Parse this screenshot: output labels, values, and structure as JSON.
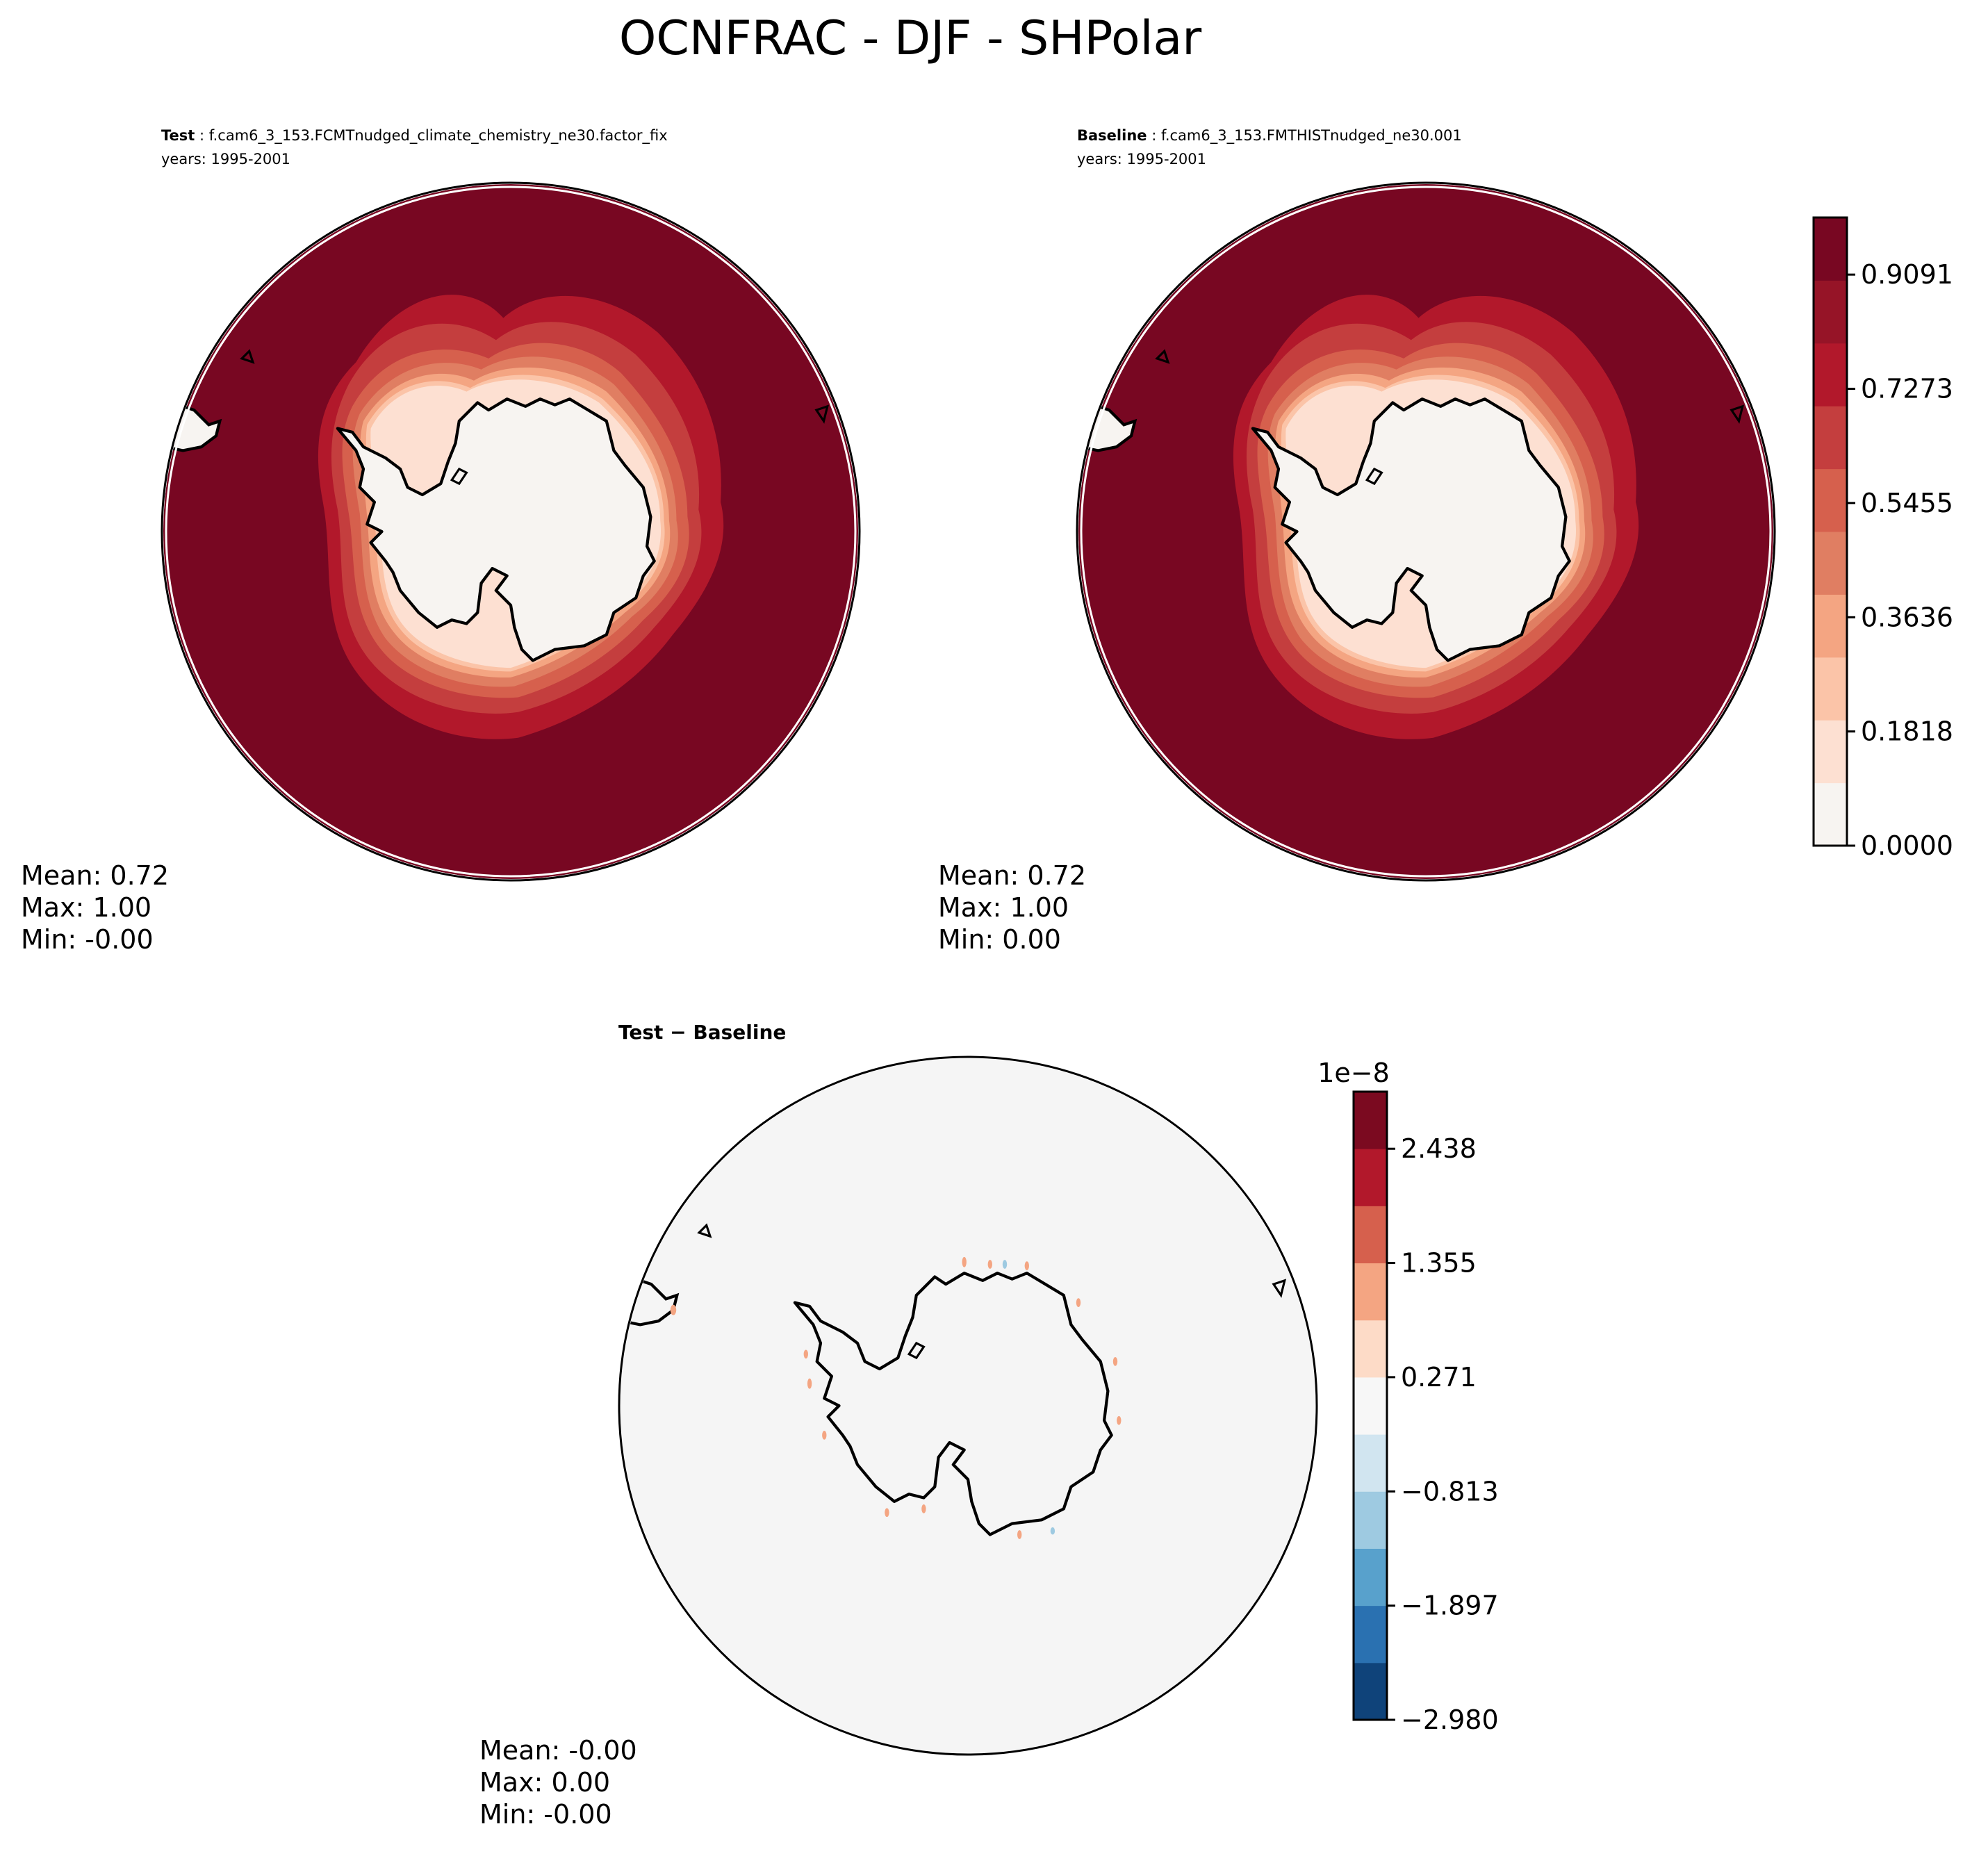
{
  "chart_data": {
    "type": "contour-map",
    "title": "OCNFRAC - DJF - SHPolar",
    "projection": "south-polar-stereographic",
    "panels": [
      {
        "id": "test",
        "label": "Test",
        "case": "f.cam6_3_153.FCMTnudged_climate_chemistry_ne30.factor_fix",
        "years": "years: 1995-2001",
        "stats": {
          "mean": "Mean:  0.72",
          "max": "Max:  1.00",
          "min": "Min: -0.00"
        },
        "stats_values": {
          "mean": 0.72,
          "max": 1.0,
          "min": -0.0
        }
      },
      {
        "id": "baseline",
        "label": "Baseline",
        "case": "f.cam6_3_153.FMTHISTnudged_ne30.001",
        "years": "years: 1995-2001",
        "stats": {
          "mean": "Mean:  0.72",
          "max": "Max:  1.00",
          "min": "Min:  0.00"
        },
        "stats_values": {
          "mean": 0.72,
          "max": 1.0,
          "min": 0.0
        }
      },
      {
        "id": "diff",
        "label": "Test − Baseline",
        "stats": {
          "mean": "Mean: -0.00",
          "max": "Max:  0.00",
          "min": "Min: -0.00"
        },
        "stats_values": {
          "mean": -0.0,
          "max": 0.0,
          "min": -0.0
        }
      }
    ],
    "colorbar_main": {
      "range": [
        0.0,
        1.0
      ],
      "tick_values": [
        0.0,
        0.1818,
        0.3636,
        0.5455,
        0.7273,
        0.9091
      ],
      "ticks": [
        "0.0000",
        "0.1818",
        "0.3636",
        "0.5455",
        "0.7273",
        "0.9091"
      ],
      "colors": [
        "#f7f4f1",
        "#fde0d2",
        "#fbc4a8",
        "#f4a582",
        "#e07e62",
        "#d6604d",
        "#c43e3e",
        "#b2182b",
        "#961427",
        "#780722"
      ]
    },
    "colorbar_diff": {
      "exponent": "1e−8",
      "range": [
        -2.98,
        2.98
      ],
      "tick_values": [
        -2.98,
        -1.897,
        -0.813,
        0.271,
        1.355,
        2.438
      ],
      "ticks": [
        "−2.980",
        "−1.897",
        "−0.813",
        "0.271",
        "1.355",
        "2.438"
      ],
      "colors": [
        "#0f437a",
        "#2a71b1",
        "#58a1cc",
        "#9ecae1",
        "#d1e5f0",
        "#f7f7f7",
        "#fddbc7",
        "#f4a582",
        "#d6604d",
        "#b2182b",
        "#7b0a20"
      ]
    }
  }
}
